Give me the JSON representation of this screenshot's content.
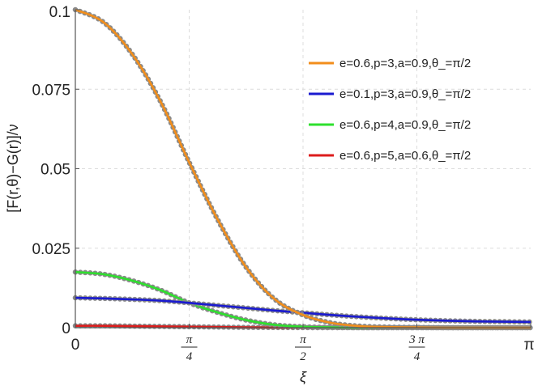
{
  "chart_data": {
    "type": "line",
    "title": "",
    "xlabel": "ξ",
    "ylabel": "[F(r,θ)−G(r)]/ν",
    "xlim": [
      0,
      3.14159
    ],
    "ylim": [
      0,
      0.1
    ],
    "x_ticks": [
      {
        "value": 0,
        "label": "0"
      },
      {
        "value": 0.7854,
        "num": "π",
        "den": "4"
      },
      {
        "value": 1.5708,
        "num": "π",
        "den": "2"
      },
      {
        "value": 2.3562,
        "num": "3 π",
        "den": "4"
      },
      {
        "value": 3.14159,
        "label": "π"
      }
    ],
    "y_ticks": [
      {
        "value": 0,
        "label": "0"
      },
      {
        "value": 0.025,
        "label": "0.025"
      },
      {
        "value": 0.05,
        "label": "0.05"
      },
      {
        "value": 0.075,
        "label": "0.075"
      },
      {
        "value": 0.1,
        "label": "0.1"
      }
    ],
    "grid": true,
    "legend_position": "top-right",
    "x": [
      0,
      0.19635,
      0.3927,
      0.58905,
      0.7854,
      0.98175,
      1.1781,
      1.37445,
      1.5708,
      1.76715,
      1.9635,
      2.15985,
      2.3562,
      2.55255,
      2.7489,
      2.94525,
      3.14159
    ],
    "series": [
      {
        "name": "e=0.6,p=3,a=0.9,θ_=π/2",
        "color": "#f28e1b",
        "values": [
          0.1,
          0.096,
          0.086,
          0.071,
          0.052,
          0.034,
          0.019,
          0.009,
          0.004,
          0.0015,
          0.0005,
          0.0002,
          0.0001,
          0,
          0,
          0,
          0
        ]
      },
      {
        "name": "e=0.1,p=3,a=0.9,θ_=π/2",
        "color": "#1a1ad0",
        "values": [
          0.0094,
          0.0092,
          0.0089,
          0.0085,
          0.0078,
          0.007,
          0.0062,
          0.0054,
          0.0047,
          0.004,
          0.0034,
          0.0029,
          0.0025,
          0.0022,
          0.002,
          0.0019,
          0.0018
        ]
      },
      {
        "name": "e=0.6,p=4,a=0.9,θ_=π/2",
        "color": "#2ee02e",
        "values": [
          0.0175,
          0.0168,
          0.0148,
          0.0118,
          0.0078,
          0.0048,
          0.0024,
          0.0009,
          0.0003,
          0.0001,
          0,
          0,
          0,
          0,
          0,
          0,
          0
        ]
      },
      {
        "name": "e=0.6,p=5,a=0.6,θ_=π/2",
        "color": "#dd1c1c",
        "values": [
          0.0006,
          0.0006,
          0.0005,
          0.0004,
          0.0003,
          0.0002,
          0.0001,
          5e-05,
          2e-05,
          0,
          0,
          0,
          0,
          0,
          0,
          0,
          0
        ]
      }
    ]
  }
}
